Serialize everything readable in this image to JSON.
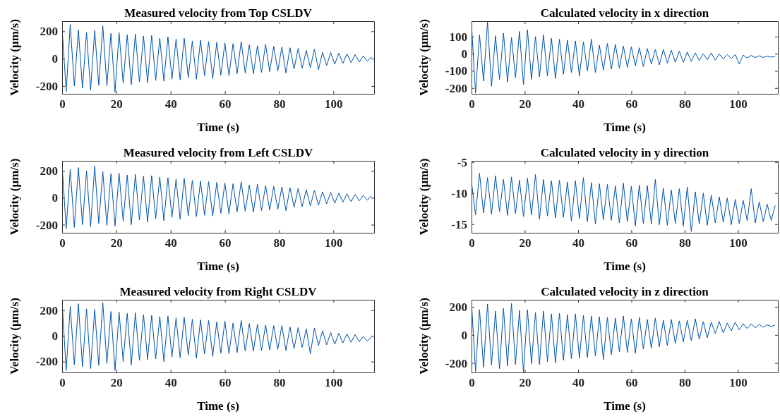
{
  "chart_data": [
    {
      "type": "line",
      "title": "Measured velocity from Top CSLDV",
      "xlabel": "Time (s)",
      "ylabel": "Velocity (μm/s)",
      "xlim": [
        0,
        115
      ],
      "ylim": [
        -257,
        274
      ],
      "xticks": [
        0,
        20,
        40,
        60,
        80,
        100
      ],
      "yticks": [
        -200,
        0,
        200
      ],
      "x": [
        0,
        1.5,
        3,
        4.5,
        6,
        7.5,
        9,
        10.5,
        12,
        13.5,
        15,
        16.5,
        18,
        19.5,
        21,
        22.5,
        24,
        25.5,
        27,
        28.5,
        30,
        31.5,
        33,
        34.5,
        36,
        37.5,
        39,
        40.5,
        42,
        43.5,
        45,
        46.5,
        48,
        49.5,
        51,
        52.5,
        54,
        55.5,
        57,
        58.5,
        60,
        61.5,
        63,
        64.5,
        66,
        67.5,
        69,
        70.5,
        72,
        73.5,
        75,
        76.5,
        78,
        79.5,
        81,
        82.5,
        84,
        85.5,
        87,
        88.5,
        90,
        91.5,
        93,
        94.5,
        96,
        97.5,
        99,
        100.5,
        102,
        103.5,
        105,
        106.5,
        108,
        109.5,
        111,
        112.5,
        114
      ],
      "series": [
        {
          "color": "#0052a8",
          "values": [
            220,
            -240,
            250,
            -200,
            210,
            -215,
            190,
            -230,
            205,
            -195,
            240,
            -200,
            185,
            -245,
            190,
            -180,
            175,
            -190,
            180,
            -170,
            165,
            -175,
            170,
            -160,
            150,
            -165,
            160,
            -150,
            145,
            -155,
            150,
            -140,
            130,
            -150,
            135,
            -125,
            125,
            -145,
            120,
            -120,
            115,
            -125,
            110,
            -110,
            125,
            -105,
            100,
            -110,
            95,
            -100,
            105,
            -95,
            90,
            -90,
            85,
            -105,
            80,
            -75,
            75,
            -70,
            60,
            -65,
            70,
            -80,
            45,
            -50,
            45,
            -40,
            40,
            -35,
            35,
            -30,
            30,
            -25,
            20,
            -20,
            15
          ]
        }
      ]
    },
    {
      "type": "line",
      "title": "Calculated velocity in x direction",
      "xlabel": "Time (s)",
      "ylabel": "Velocity (μm/s)",
      "xlim": [
        0,
        115
      ],
      "ylim": [
        -234,
        190
      ],
      "xticks": [
        0,
        20,
        40,
        60,
        80,
        100
      ],
      "yticks": [
        -200,
        -100,
        0,
        100
      ],
      "x": [
        0,
        1.5,
        3,
        4.5,
        6,
        7.5,
        9,
        10.5,
        12,
        13.5,
        15,
        16.5,
        18,
        19.5,
        21,
        22.5,
        24,
        25.5,
        27,
        28.5,
        30,
        31.5,
        33,
        34.5,
        36,
        37.5,
        39,
        40.5,
        42,
        43.5,
        45,
        46.5,
        48,
        49.5,
        51,
        52.5,
        54,
        55.5,
        57,
        58.5,
        60,
        61.5,
        63,
        64.5,
        66,
        67.5,
        69,
        70.5,
        72,
        73.5,
        75,
        76.5,
        78,
        79.5,
        81,
        82.5,
        84,
        85.5,
        87,
        88.5,
        90,
        91.5,
        93,
        94.5,
        96,
        97.5,
        99,
        100.5,
        102,
        103.5,
        105,
        106.5,
        108,
        109.5,
        111,
        112.5,
        114
      ],
      "series": [
        {
          "color": "#0052a8",
          "values": [
            170,
            -230,
            110,
            -160,
            185,
            -190,
            105,
            -150,
            120,
            -165,
            95,
            -140,
            130,
            -180,
            140,
            -150,
            100,
            -135,
            110,
            -130,
            90,
            -145,
            85,
            -120,
            80,
            -110,
            75,
            -130,
            70,
            -100,
            85,
            -110,
            50,
            -95,
            60,
            -90,
            55,
            -85,
            45,
            -80,
            40,
            -70,
            35,
            -75,
            30,
            -60,
            25,
            -65,
            25,
            -55,
            20,
            -50,
            15,
            -50,
            10,
            -45,
            5,
            -40,
            0,
            -35,
            5,
            -38,
            -2,
            -30,
            -5,
            -28,
            -5,
            -60,
            -8,
            -25,
            -10,
            -22,
            -12,
            -22,
            -14,
            -20,
            -16
          ]
        }
      ]
    },
    {
      "type": "line",
      "title": "Measured velocity from Left CSLDV",
      "xlabel": "Time (s)",
      "ylabel": "Velocity (μm/s)",
      "xlim": [
        0,
        115
      ],
      "ylim": [
        -260,
        275
      ],
      "xticks": [
        0,
        20,
        40,
        60,
        80,
        100
      ],
      "yticks": [
        -200,
        0,
        200
      ],
      "x": [
        0,
        1.5,
        3,
        4.5,
        6,
        7.5,
        9,
        10.5,
        12,
        13.5,
        15,
        16.5,
        18,
        19.5,
        21,
        22.5,
        24,
        25.5,
        27,
        28.5,
        30,
        31.5,
        33,
        34.5,
        36,
        37.5,
        39,
        40.5,
        42,
        43.5,
        45,
        46.5,
        48,
        49.5,
        51,
        52.5,
        54,
        55.5,
        57,
        58.5,
        60,
        61.5,
        63,
        64.5,
        66,
        67.5,
        69,
        70.5,
        72,
        73.5,
        75,
        76.5,
        78,
        79.5,
        81,
        82.5,
        84,
        85.5,
        87,
        88.5,
        90,
        91.5,
        93,
        94.5,
        96,
        97.5,
        99,
        100.5,
        102,
        103.5,
        105,
        106.5,
        108,
        109.5,
        111,
        112.5,
        114
      ],
      "series": [
        {
          "color": "#0052a8",
          "values": [
            240,
            -230,
            210,
            -220,
            225,
            -200,
            200,
            -215,
            235,
            -190,
            195,
            -205,
            180,
            -210,
            185,
            -175,
            170,
            -200,
            175,
            -165,
            160,
            -180,
            165,
            -155,
            155,
            -170,
            150,
            -145,
            140,
            -160,
            145,
            -135,
            130,
            -140,
            125,
            -130,
            120,
            -135,
            115,
            -115,
            110,
            -120,
            105,
            -105,
            120,
            -100,
            95,
            -105,
            100,
            -95,
            90,
            -90,
            85,
            -85,
            80,
            -95,
            75,
            -70,
            70,
            -65,
            60,
            -60,
            55,
            -55,
            45,
            -45,
            40,
            -40,
            35,
            -32,
            30,
            -28,
            25,
            -22,
            18,
            -18,
            15
          ]
        }
      ]
    },
    {
      "type": "line",
      "title": "Calculated velocity in y direction",
      "xlabel": "Time (s)",
      "ylabel": "Velocity (μm/s)",
      "xlim": [
        0,
        115
      ],
      "ylim": [
        -16.4,
        -4.8
      ],
      "xticks": [
        0,
        20,
        40,
        60,
        80,
        100
      ],
      "yticks": [
        -15,
        -10,
        -5
      ],
      "x": [
        0,
        1.5,
        3,
        4.5,
        6,
        7.5,
        9,
        10.5,
        12,
        13.5,
        15,
        16.5,
        18,
        19.5,
        21,
        22.5,
        24,
        25.5,
        27,
        28.5,
        30,
        31.5,
        33,
        34.5,
        36,
        37.5,
        39,
        40.5,
        42,
        43.5,
        45,
        46.5,
        48,
        49.5,
        51,
        52.5,
        54,
        55.5,
        57,
        58.5,
        60,
        61.5,
        63,
        64.5,
        66,
        67.5,
        69,
        70.5,
        72,
        73.5,
        75,
        76.5,
        78,
        79.5,
        81,
        82.5,
        84,
        85.5,
        87,
        88.5,
        90,
        91.5,
        93,
        94.5,
        96,
        97.5,
        99,
        100.5,
        102,
        103.5,
        105,
        106.5,
        108,
        109.5,
        111,
        112.5,
        114
      ],
      "series": [
        {
          "color": "#0052a8",
          "values": [
            -8.2,
            -13.5,
            -6.8,
            -13.2,
            -7.5,
            -13.4,
            -7.2,
            -13.0,
            -7.8,
            -13.6,
            -7.4,
            -13.3,
            -7.9,
            -13.8,
            -7.6,
            -13.5,
            -7.0,
            -14.2,
            -7.8,
            -13.7,
            -8.0,
            -14.0,
            -7.9,
            -13.9,
            -8.2,
            -14.5,
            -8.0,
            -14.1,
            -7.5,
            -14.6,
            -8.3,
            -15.0,
            -8.5,
            -14.3,
            -8.6,
            -14.4,
            -8.8,
            -14.8,
            -8.4,
            -14.6,
            -8.9,
            -15.3,
            -8.7,
            -14.9,
            -8.8,
            -15.0,
            -7.8,
            -15.1,
            -9.2,
            -15.2,
            -9.5,
            -14.9,
            -9.3,
            -15.3,
            -9.0,
            -16.2,
            -9.8,
            -15.0,
            -10.0,
            -15.2,
            -10.3,
            -14.8,
            -10.6,
            -14.7,
            -10.8,
            -15.1,
            -11.0,
            -14.9,
            -11.2,
            -14.5,
            -9.3,
            -14.8,
            -11.4,
            -14.6,
            -11.8,
            -14.4,
            -12.0
          ]
        }
      ]
    },
    {
      "type": "line",
      "title": "Measured velocity from Right CSLDV",
      "xlabel": "Time (s)",
      "ylabel": "Velocity (μm/s)",
      "xlim": [
        0,
        115
      ],
      "ylim": [
        -285,
        281
      ],
      "xticks": [
        0,
        20,
        40,
        60,
        80,
        100
      ],
      "yticks": [
        -200,
        0,
        200
      ],
      "x": [
        0,
        1.5,
        3,
        4.5,
        6,
        7.5,
        9,
        10.5,
        12,
        13.5,
        15,
        16.5,
        18,
        19.5,
        21,
        22.5,
        24,
        25.5,
        27,
        28.5,
        30,
        31.5,
        33,
        34.5,
        36,
        37.5,
        39,
        40.5,
        42,
        43.5,
        45,
        46.5,
        48,
        49.5,
        51,
        52.5,
        54,
        55.5,
        57,
        58.5,
        60,
        61.5,
        63,
        64.5,
        66,
        67.5,
        69,
        70.5,
        72,
        73.5,
        75,
        76.5,
        78,
        79.5,
        81,
        82.5,
        84,
        85.5,
        87,
        88.5,
        90,
        91.5,
        93,
        94.5,
        96,
        97.5,
        99,
        100.5,
        102,
        103.5,
        105,
        106.5,
        108,
        109.5,
        111,
        112.5,
        114
      ],
      "series": [
        {
          "color": "#0052a8",
          "values": [
            260,
            -270,
            230,
            -225,
            250,
            -240,
            210,
            -255,
            205,
            -230,
            260,
            -215,
            190,
            -270,
            185,
            -200,
            175,
            -225,
            180,
            -190,
            165,
            -185,
            160,
            -180,
            150,
            -200,
            155,
            -165,
            140,
            -170,
            145,
            -150,
            130,
            -175,
            125,
            -140,
            120,
            -160,
            110,
            -135,
            115,
            -140,
            100,
            -130,
            120,
            -120,
            95,
            -120,
            90,
            -115,
            85,
            -110,
            80,
            -105,
            80,
            -115,
            70,
            -100,
            65,
            -90,
            55,
            -140,
            60,
            -75,
            40,
            -70,
            25,
            -65,
            20,
            -55,
            15,
            -50,
            10,
            -45,
            -5,
            -40,
            -10
          ]
        }
      ]
    },
    {
      "type": "line",
      "title": "Calculated velocity in z direction",
      "xlabel": "Time (s)",
      "ylabel": "Velocity (μm/s)",
      "xlim": [
        0,
        115
      ],
      "ylim": [
        -267,
        250
      ],
      "xticks": [
        0,
        20,
        40,
        60,
        80,
        100
      ],
      "yticks": [
        -200,
        0,
        200
      ],
      "x": [
        0,
        1.5,
        3,
        4.5,
        6,
        7.5,
        9,
        10.5,
        12,
        13.5,
        15,
        16.5,
        18,
        19.5,
        21,
        22.5,
        24,
        25.5,
        27,
        28.5,
        30,
        31.5,
        33,
        34.5,
        36,
        37.5,
        39,
        40.5,
        42,
        43.5,
        45,
        46.5,
        48,
        49.5,
        51,
        52.5,
        54,
        55.5,
        57,
        58.5,
        60,
        61.5,
        63,
        64.5,
        66,
        67.5,
        69,
        70.5,
        72,
        73.5,
        75,
        76.5,
        78,
        79.5,
        81,
        82.5,
        84,
        85.5,
        87,
        88.5,
        90,
        91.5,
        93,
        94.5,
        96,
        97.5,
        99,
        100.5,
        102,
        103.5,
        105,
        106.5,
        108,
        109.5,
        111,
        112.5,
        114
      ],
      "series": [
        {
          "color": "#0052a8",
          "values": [
            230,
            -260,
            180,
            -230,
            220,
            -215,
            170,
            -240,
            190,
            -220,
            225,
            -210,
            175,
            -265,
            180,
            -205,
            160,
            -210,
            170,
            -190,
            150,
            -200,
            155,
            -180,
            145,
            -170,
            150,
            -165,
            140,
            -160,
            135,
            -150,
            130,
            -175,
            125,
            -140,
            120,
            -120,
            135,
            -125,
            115,
            -130,
            125,
            -100,
            110,
            -95,
            120,
            -85,
            105,
            -75,
            110,
            -60,
            100,
            -50,
            105,
            -40,
            115,
            -30,
            95,
            -20,
            90,
            10,
            95,
            15,
            85,
            30,
            90,
            35,
            80,
            45,
            80,
            50,
            75,
            55,
            72,
            60,
            70
          ]
        }
      ]
    }
  ]
}
